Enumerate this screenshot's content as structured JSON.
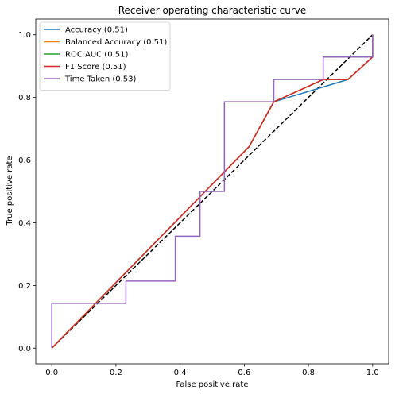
{
  "chart_data": {
    "type": "line",
    "title": "Receiver operating characteristic curve",
    "xlabel": "False positive rate",
    "ylabel": "True positive rate",
    "xlim": [
      -0.05,
      1.05
    ],
    "ylim": [
      -0.05,
      1.05
    ],
    "xticks": [
      "0.0",
      "0.2",
      "0.4",
      "0.6",
      "0.8",
      "1.0"
    ],
    "yticks": [
      "0.0",
      "0.2",
      "0.4",
      "0.6",
      "0.8",
      "1.0"
    ],
    "grid": false,
    "legend_position": "upper-left",
    "reference_line": {
      "x": [
        0,
        1
      ],
      "y": [
        0,
        1
      ],
      "color": "#000000",
      "style": "dashed"
    },
    "series": [
      {
        "name": "Accuracy (0.51)",
        "color": "#1f77b4",
        "x": [
          0,
          0.615,
          0.692,
          0.923,
          1.0,
          1.0
        ],
        "y": [
          0,
          0.643,
          0.786,
          0.857,
          0.929,
          1.0
        ]
      },
      {
        "name": "Balanced Accuracy (0.51)",
        "color": "#ff7f0e",
        "x": [
          0,
          0.615,
          0.692,
          0.846,
          0.923,
          1.0,
          1.0
        ],
        "y": [
          0,
          0.643,
          0.786,
          0.857,
          0.857,
          0.929,
          1.0
        ]
      },
      {
        "name": "ROC AUC (0.51)",
        "color": "#2ca02c",
        "x": [
          0,
          0.615,
          0.692,
          0.846,
          0.923,
          1.0,
          1.0
        ],
        "y": [
          0,
          0.643,
          0.786,
          0.857,
          0.857,
          0.929,
          1.0
        ]
      },
      {
        "name": "F1 Score (0.51)",
        "color": "#d62728",
        "x": [
          0,
          0.615,
          0.692,
          0.846,
          0.923,
          1.0,
          1.0
        ],
        "y": [
          0,
          0.643,
          0.786,
          0.857,
          0.857,
          0.929,
          1.0
        ]
      },
      {
        "name": "Time Taken (0.53)",
        "color": "#9467bd",
        "x": [
          0,
          0,
          0.231,
          0.231,
          0.385,
          0.385,
          0.462,
          0.462,
          0.538,
          0.538,
          0.692,
          0.692,
          0.846,
          0.846,
          1.0,
          1.0
        ],
        "y": [
          0,
          0.143,
          0.143,
          0.214,
          0.214,
          0.357,
          0.357,
          0.5,
          0.5,
          0.786,
          0.786,
          0.857,
          0.857,
          0.929,
          0.929,
          1.0
        ]
      }
    ]
  }
}
